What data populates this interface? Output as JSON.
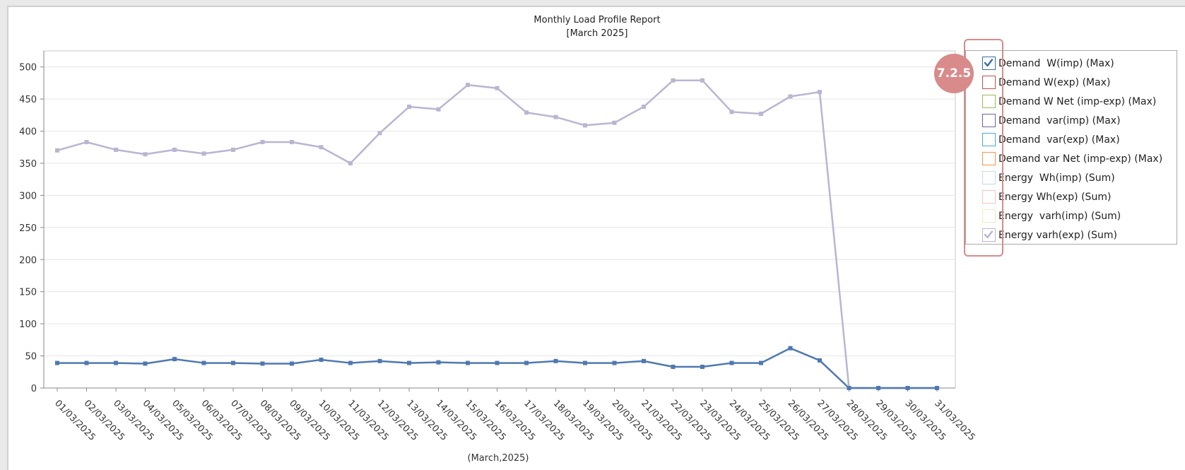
{
  "chart_data": {
    "type": "line",
    "title": "Monthly Load Profile Report",
    "subtitle": "[March 2025]",
    "xlabel": "(March,2025)",
    "ylabel": "",
    "ylim": [
      0,
      525
    ],
    "yticks": [
      0,
      50,
      100,
      150,
      200,
      250,
      300,
      350,
      400,
      450,
      500
    ],
    "grid": true,
    "legend_position": "right",
    "categories": [
      "01/03/2025",
      "02/03/2025",
      "03/03/2025",
      "04/03/2025",
      "05/03/2025",
      "06/03/2025",
      "07/03/2025",
      "08/03/2025",
      "09/03/2025",
      "10/03/2025",
      "11/03/2025",
      "12/03/2025",
      "13/03/2025",
      "14/03/2025",
      "15/03/2025",
      "16/03/2025",
      "17/03/2025",
      "18/03/2025",
      "19/03/2025",
      "20/03/2025",
      "21/03/2025",
      "22/03/2025",
      "23/03/2025",
      "24/03/2025",
      "25/03/2025",
      "26/03/2025",
      "27/03/2025",
      "28/03/2025",
      "29/03/2025",
      "30/03/2025",
      "31/03/2025"
    ],
    "series": [
      {
        "name": "Demand  W(imp) (Max)",
        "color": "#4e79b0",
        "values": [
          39,
          39,
          39,
          38,
          45,
          39,
          39,
          38,
          38,
          44,
          39,
          42,
          39,
          40,
          39,
          39,
          39,
          42,
          39,
          39,
          42,
          33,
          33,
          39,
          39,
          62,
          43,
          0,
          0,
          0,
          0
        ]
      },
      {
        "name": "Energy varh(exp) (Sum)",
        "color": "#b9b5d2",
        "values": [
          370,
          383,
          371,
          364,
          371,
          365,
          371,
          383,
          383,
          375,
          350,
          397,
          438,
          434,
          472,
          467,
          429,
          422,
          409,
          413,
          438,
          479,
          479,
          430,
          427,
          454,
          461,
          0,
          0,
          0,
          0
        ]
      }
    ]
  },
  "legend": {
    "items": [
      {
        "label": "Demand  W(imp) (Max)",
        "color": "#3a6ea5",
        "checked": true
      },
      {
        "label": "Demand W(exp) (Max)",
        "color": "#c0504d",
        "checked": false
      },
      {
        "label": "Demand W Net (imp-exp) (Max)",
        "color": "#9bbb59",
        "checked": false
      },
      {
        "label": "Demand  var(imp) (Max)",
        "color": "#7a5f9a",
        "checked": false
      },
      {
        "label": "Demand  var(exp) (Max)",
        "color": "#4bacc6",
        "checked": false
      },
      {
        "label": "Demand var Net (imp-exp) (Max)",
        "color": "#f79646",
        "checked": false
      },
      {
        "label": "Energy  Wh(imp) (Sum)",
        "color": "#c6d9f1",
        "checked": false
      },
      {
        "label": "Energy Wh(exp) (Sum)",
        "color": "#f2c4c4",
        "checked": false
      },
      {
        "label": "Energy  varh(imp) (Sum)",
        "color": "#e6ecc7",
        "checked": false
      },
      {
        "label": "Energy varh(exp) (Sum)",
        "color": "#b9b5d2",
        "checked": true
      }
    ]
  },
  "annotation": {
    "step_label": "7.2.5",
    "color": "#d98a8a"
  }
}
